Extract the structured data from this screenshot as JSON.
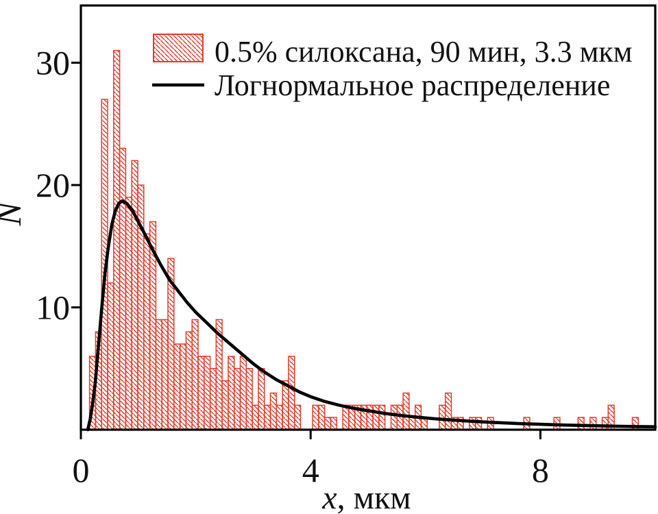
{
  "colors": {
    "bar_red": "#e8392a",
    "curve_black": "#000000",
    "text": "#111111",
    "background": "#ffffff"
  },
  "axes": {
    "x": {
      "label_italic": "x",
      "label_rest": ", мкм",
      "tick_labels": [
        "0",
        "4",
        "8"
      ]
    },
    "y": {
      "label": "N",
      "tick_labels": [
        "10",
        "20",
        "30"
      ]
    }
  },
  "legend": {
    "histogram_label": "0.5% силоксана, 90 мин, 3.3 мкм",
    "curve_label": "Логнормальное распределение"
  },
  "chart_data": {
    "type": "histogram+line",
    "title": "",
    "xlabel": "x, мкм",
    "ylabel": "N",
    "xlim": [
      0,
      10
    ],
    "ylim": [
      0,
      34.7
    ],
    "x_ticks": [
      0,
      4,
      8
    ],
    "y_ticks": [
      10,
      20,
      30
    ],
    "grid": false,
    "legend_position": "upper-center",
    "series": [
      {
        "name": "0.5% силоксана, 90 мин, 3.3 мкм",
        "kind": "histogram",
        "color": "#e8392a",
        "hatch": "\\",
        "x_start": 0.15,
        "bin_width": 0.105,
        "counts": [
          6,
          8,
          27,
          12,
          31,
          23,
          19,
          22,
          20,
          16,
          17,
          9,
          9,
          14,
          7,
          7,
          8,
          9,
          6,
          6,
          5,
          9,
          4,
          6,
          5,
          6,
          5,
          2,
          5,
          2,
          3,
          2,
          4,
          6,
          2,
          0,
          0,
          2,
          2,
          1,
          1,
          0,
          2,
          2,
          2,
          2,
          2,
          2,
          2,
          0,
          2,
          2,
          3,
          1,
          2,
          1,
          0,
          0,
          2,
          3,
          1,
          1,
          0,
          1,
          1,
          0,
          1,
          0,
          0,
          0,
          0,
          0,
          1,
          0,
          0,
          0,
          0,
          1,
          0,
          0,
          0,
          1,
          0,
          1,
          0,
          1,
          2,
          0,
          0,
          0,
          1
        ]
      },
      {
        "name": "Логнормальное распределение",
        "kind": "line",
        "color": "#000000",
        "points": [
          [
            0.12,
            0
          ],
          [
            0.16,
            0.8
          ],
          [
            0.2,
            2
          ],
          [
            0.25,
            3.8
          ],
          [
            0.3,
            6.5
          ],
          [
            0.36,
            9.8
          ],
          [
            0.42,
            12.8
          ],
          [
            0.48,
            15.0
          ],
          [
            0.54,
            16.8
          ],
          [
            0.6,
            17.9
          ],
          [
            0.66,
            18.5
          ],
          [
            0.72,
            18.7
          ],
          [
            0.8,
            18.5
          ],
          [
            0.9,
            17.9
          ],
          [
            1.0,
            17.0
          ],
          [
            1.1,
            16.1
          ],
          [
            1.25,
            14.7
          ],
          [
            1.4,
            13.4
          ],
          [
            1.55,
            12.2
          ],
          [
            1.7,
            11.3
          ],
          [
            1.85,
            10.4
          ],
          [
            2.0,
            9.6
          ],
          [
            2.2,
            8.7
          ],
          [
            2.4,
            7.8
          ],
          [
            2.6,
            7.0
          ],
          [
            2.8,
            6.2
          ],
          [
            3.0,
            5.4
          ],
          [
            3.2,
            4.7
          ],
          [
            3.4,
            4.1
          ],
          [
            3.6,
            3.6
          ],
          [
            3.8,
            3.1
          ],
          [
            4.0,
            2.7
          ],
          [
            4.25,
            2.3
          ],
          [
            4.5,
            2.0
          ],
          [
            4.75,
            1.75
          ],
          [
            5.0,
            1.55
          ],
          [
            5.3,
            1.33
          ],
          [
            5.6,
            1.15
          ],
          [
            5.9,
            1.0
          ],
          [
            6.2,
            0.88
          ],
          [
            6.5,
            0.78
          ],
          [
            6.8,
            0.69
          ],
          [
            7.1,
            0.61
          ],
          [
            7.4,
            0.55
          ],
          [
            7.7,
            0.49
          ],
          [
            8.0,
            0.44
          ],
          [
            8.3,
            0.4
          ],
          [
            8.6,
            0.36
          ],
          [
            9.0,
            0.32
          ],
          [
            9.4,
            0.28
          ],
          [
            9.7,
            0.26
          ],
          [
            10.0,
            0.24
          ]
        ]
      }
    ]
  }
}
